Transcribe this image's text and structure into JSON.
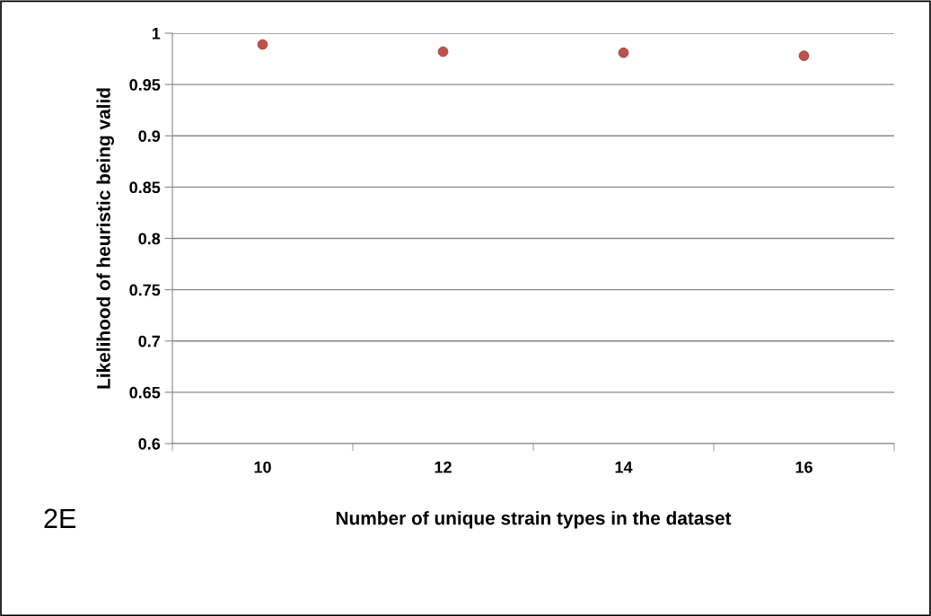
{
  "chart_data": {
    "type": "scatter",
    "xlabel": "Number of unique strain types in the dataset",
    "ylabel": "Likelihood of heuristic being valid",
    "categories": [
      "10",
      "12",
      "14",
      "16"
    ],
    "series": [
      {
        "color": "#c0504d",
        "values": [
          0.989,
          0.982,
          0.981,
          0.978
        ]
      }
    ],
    "ylim": [
      0.6,
      1
    ],
    "yticks": [
      0.6,
      0.65,
      0.7,
      0.75,
      0.8,
      0.85,
      0.9,
      0.95,
      1
    ],
    "grid": "y",
    "marker": "circle",
    "annotations": [
      "2E"
    ]
  }
}
